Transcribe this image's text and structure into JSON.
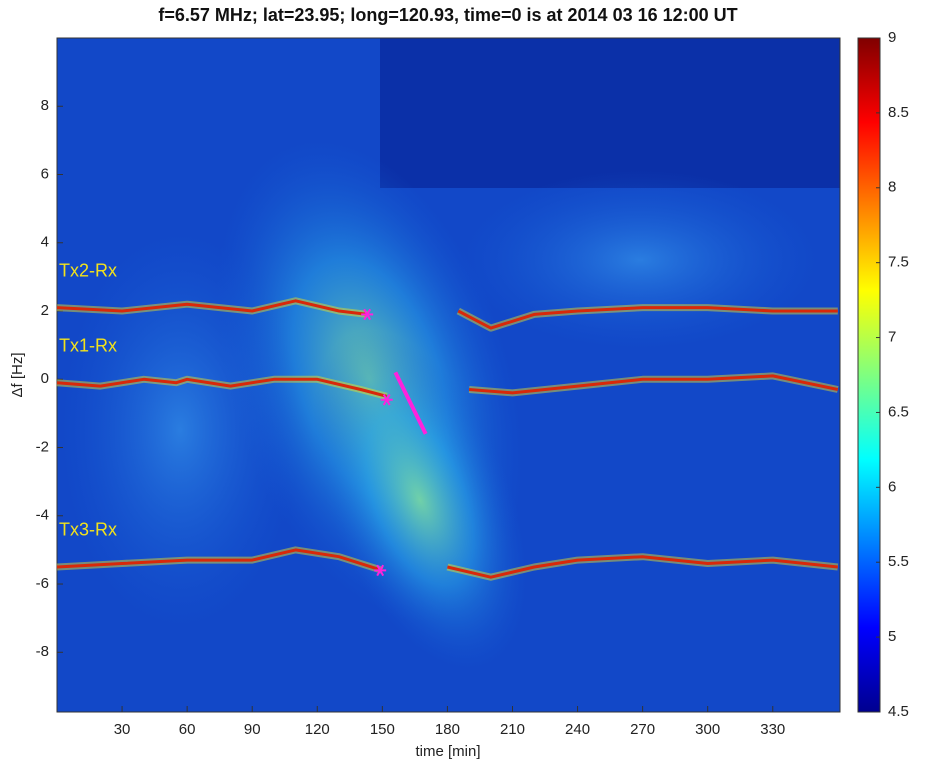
{
  "chart_data": {
    "type": "spectrogram",
    "title": "f=6.57 MHz;  lat=23.95; long=120.93, time=0 is at 2014 03 16 12:00 UT",
    "xlabel": "time [min]",
    "ylabel": "Δf [Hz]",
    "xlim": [
      0,
      361
    ],
    "ylim": [
      -9.75,
      10
    ],
    "xticks": [
      30,
      60,
      90,
      120,
      150,
      180,
      210,
      240,
      270,
      300,
      330
    ],
    "yticks": [
      -8,
      -6,
      -4,
      -2,
      0,
      2,
      4,
      6,
      8
    ],
    "colormap": "jet",
    "clim": [
      4.5,
      9
    ],
    "cticks": [
      4.5,
      5,
      5.5,
      6,
      6.5,
      7,
      7.5,
      8,
      8.5,
      9
    ],
    "series": [
      {
        "name": "Tx2-Rx",
        "color": "#d8280a",
        "x": [
          0,
          30,
          60,
          75,
          90,
          110,
          130,
          143,
          null,
          185,
          200,
          220,
          240,
          270,
          300,
          330,
          360
        ],
        "values": [
          2.1,
          2.0,
          2.2,
          2.1,
          2.0,
          2.3,
          2.0,
          1.9,
          null,
          2.0,
          1.5,
          1.9,
          2.0,
          2.1,
          2.1,
          2.0,
          2.0
        ]
      },
      {
        "name": "Tx1-Rx",
        "color": "#d8280a",
        "x": [
          0,
          20,
          40,
          55,
          60,
          80,
          100,
          120,
          140,
          152,
          null,
          190,
          210,
          240,
          270,
          300,
          330,
          360
        ],
        "values": [
          -0.1,
          -0.2,
          0.0,
          -0.1,
          0.0,
          -0.2,
          0.0,
          0.0,
          -0.3,
          -0.5,
          null,
          -0.3,
          -0.4,
          -0.2,
          0.0,
          0.0,
          0.1,
          -0.3
        ]
      },
      {
        "name": "Tx3-Rx",
        "color": "#d8280a",
        "x": [
          0,
          30,
          60,
          90,
          110,
          130,
          150,
          null,
          180,
          200,
          220,
          240,
          270,
          300,
          330,
          360
        ],
        "values": [
          -5.5,
          -5.4,
          -5.3,
          -5.3,
          -5.0,
          -5.2,
          -5.6,
          null,
          -5.5,
          -5.8,
          -5.5,
          -5.3,
          -5.2,
          -5.4,
          -5.3,
          -5.5
        ]
      }
    ],
    "label_color": "#f2e21c",
    "markers": {
      "color": "#ff22dd",
      "x": [
        143,
        152,
        149
      ],
      "values": [
        1.9,
        -0.6,
        -5.6
      ]
    },
    "segment": {
      "color": "#ff22dd",
      "x": [
        156,
        170
      ],
      "values": [
        0.2,
        -1.6
      ]
    }
  }
}
